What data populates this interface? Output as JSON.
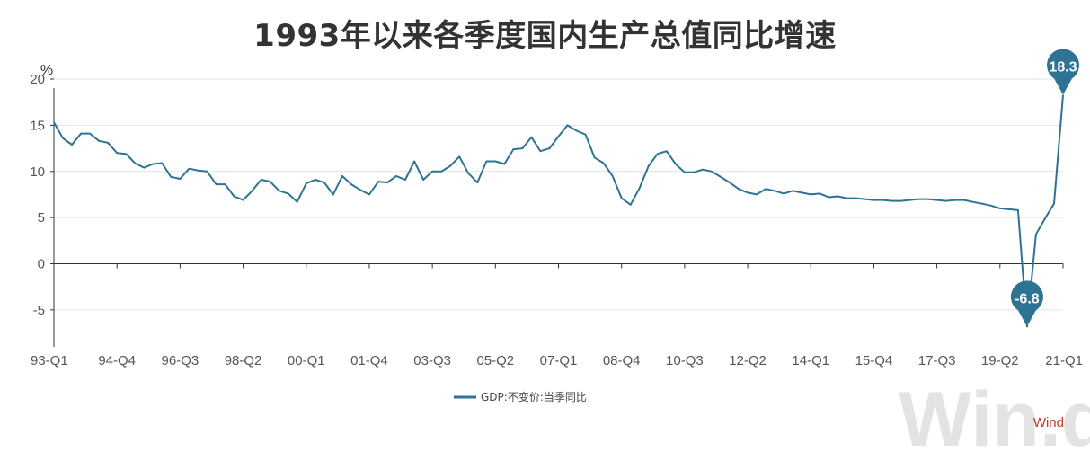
{
  "chart_data": {
    "type": "line",
    "title": "1993年以来各季度国内生产总值同比增速",
    "ylabel": "%",
    "ylim": [
      -9,
      20
    ],
    "yticks": [
      20,
      15,
      10,
      5,
      0,
      -5
    ],
    "x_tick_labels": [
      "93-Q1",
      "94-Q4",
      "96-Q3",
      "98-Q2",
      "00-Q1",
      "01-Q4",
      "03-Q3",
      "05-Q2",
      "07-Q1",
      "08-Q4",
      "10-Q3",
      "12-Q2",
      "14-Q1",
      "15-Q4",
      "17-Q3",
      "19-Q2",
      "21-Q1"
    ],
    "series": [
      {
        "name": "GDP:不变价:当季同比",
        "color": "#2e7394",
        "x": [
          "93-Q1",
          "93-Q2",
          "93-Q3",
          "93-Q4",
          "94-Q1",
          "94-Q2",
          "94-Q3",
          "94-Q4",
          "95-Q1",
          "95-Q2",
          "95-Q3",
          "95-Q4",
          "96-Q1",
          "96-Q2",
          "96-Q3",
          "96-Q4",
          "97-Q1",
          "97-Q2",
          "97-Q3",
          "97-Q4",
          "98-Q1",
          "98-Q2",
          "98-Q3",
          "98-Q4",
          "99-Q1",
          "99-Q2",
          "99-Q3",
          "99-Q4",
          "00-Q1",
          "00-Q2",
          "00-Q3",
          "00-Q4",
          "01-Q1",
          "01-Q2",
          "01-Q3",
          "01-Q4",
          "02-Q1",
          "02-Q2",
          "02-Q3",
          "02-Q4",
          "03-Q1",
          "03-Q2",
          "03-Q3",
          "03-Q4",
          "04-Q1",
          "04-Q2",
          "04-Q3",
          "04-Q4",
          "05-Q1",
          "05-Q2",
          "05-Q3",
          "05-Q4",
          "06-Q1",
          "06-Q2",
          "06-Q3",
          "06-Q4",
          "07-Q1",
          "07-Q2",
          "07-Q3",
          "07-Q4",
          "08-Q1",
          "08-Q2",
          "08-Q3",
          "08-Q4",
          "09-Q1",
          "09-Q2",
          "09-Q3",
          "09-Q4",
          "10-Q1",
          "10-Q2",
          "10-Q3",
          "10-Q4",
          "11-Q1",
          "11-Q2",
          "11-Q3",
          "11-Q4",
          "12-Q1",
          "12-Q2",
          "12-Q3",
          "12-Q4",
          "13-Q1",
          "13-Q2",
          "13-Q3",
          "13-Q4",
          "14-Q1",
          "14-Q2",
          "14-Q3",
          "14-Q4",
          "15-Q1",
          "15-Q2",
          "15-Q3",
          "15-Q4",
          "16-Q1",
          "16-Q2",
          "16-Q3",
          "16-Q4",
          "17-Q1",
          "17-Q2",
          "17-Q3",
          "17-Q4",
          "18-Q1",
          "18-Q2",
          "18-Q3",
          "18-Q4",
          "19-Q1",
          "19-Q2",
          "19-Q3",
          "19-Q4",
          "20-Q1",
          "20-Q2",
          "20-Q3",
          "20-Q4",
          "21-Q1"
        ],
        "values": [
          15.3,
          13.6,
          12.9,
          14.1,
          14.1,
          13.3,
          13.1,
          12.0,
          11.9,
          10.9,
          10.4,
          10.8,
          10.9,
          9.4,
          9.2,
          10.3,
          10.1,
          10.0,
          8.6,
          8.6,
          7.3,
          6.9,
          7.9,
          9.1,
          8.9,
          7.9,
          7.6,
          6.7,
          8.7,
          9.1,
          8.8,
          7.5,
          9.5,
          8.6,
          8.0,
          7.5,
          8.9,
          8.8,
          9.5,
          9.1,
          11.1,
          9.1,
          10.0,
          10.0,
          10.6,
          11.6,
          9.8,
          8.8,
          11.1,
          11.1,
          10.8,
          12.4,
          12.5,
          13.7,
          12.2,
          12.5,
          13.8,
          15.0,
          14.4,
          14.0,
          11.5,
          10.9,
          9.5,
          7.1,
          6.4,
          8.2,
          10.6,
          11.9,
          12.2,
          10.8,
          9.9,
          9.9,
          10.2,
          10.0,
          9.4,
          8.8,
          8.1,
          7.7,
          7.5,
          8.1,
          7.9,
          7.6,
          7.9,
          7.7,
          7.5,
          7.6,
          7.2,
          7.3,
          7.1,
          7.1,
          7.0,
          6.9,
          6.9,
          6.8,
          6.8,
          6.9,
          7.0,
          7.0,
          6.9,
          6.8,
          6.9,
          6.9,
          6.7,
          6.5,
          6.3,
          6.0,
          5.9,
          5.8,
          -6.8,
          3.2,
          4.9,
          6.5,
          18.3
        ],
        "callouts": [
          {
            "x": "20-Q1",
            "label": "-6.8"
          },
          {
            "x": "21-Q1",
            "label": "18.3"
          }
        ]
      }
    ],
    "legend_position": "bottom-center",
    "grid": true
  },
  "watermark": "Win.d",
  "source": "Wind"
}
